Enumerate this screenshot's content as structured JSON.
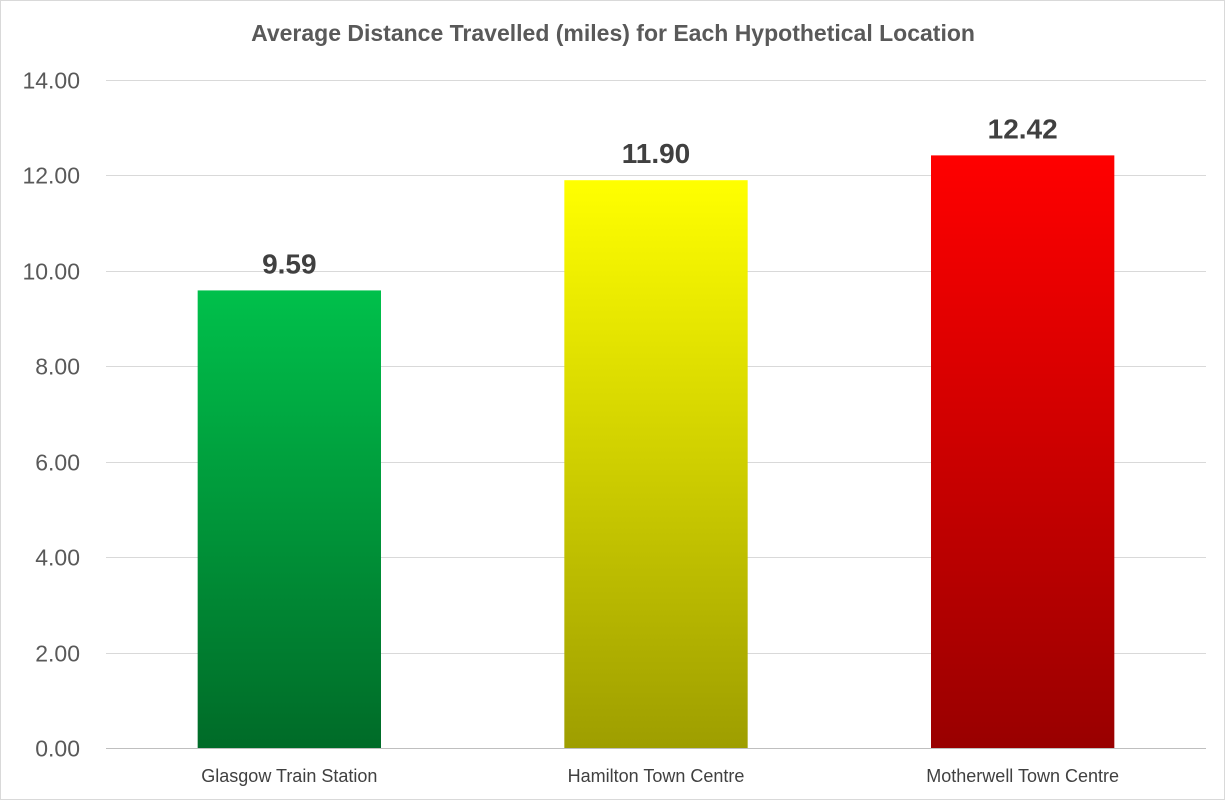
{
  "chart_data": {
    "type": "bar",
    "title": "Average Distance Travelled (miles) for Each Hypothetical Location",
    "xlabel": "",
    "ylabel": "",
    "categories": [
      "Glasgow Train Station",
      "Hamilton Town Centre",
      "Motherwell Town Centre"
    ],
    "values": [
      9.59,
      11.9,
      12.42
    ],
    "data_labels": [
      "9.59",
      "11.90",
      "12.42"
    ],
    "ylim": [
      0,
      14
    ],
    "yticks": [
      0,
      2,
      4,
      6,
      8,
      10,
      12,
      14
    ],
    "ytick_labels": [
      "0.00",
      "2.00",
      "4.00",
      "6.00",
      "8.00",
      "10.00",
      "12.00",
      "14.00"
    ],
    "grid": true,
    "legend": "none",
    "bar_colors": [
      {
        "top": "#00c04b",
        "bottom": "#006b28"
      },
      {
        "top": "#ffff00",
        "bottom": "#9e9e00"
      },
      {
        "top": "#ff0000",
        "bottom": "#990000"
      }
    ]
  }
}
